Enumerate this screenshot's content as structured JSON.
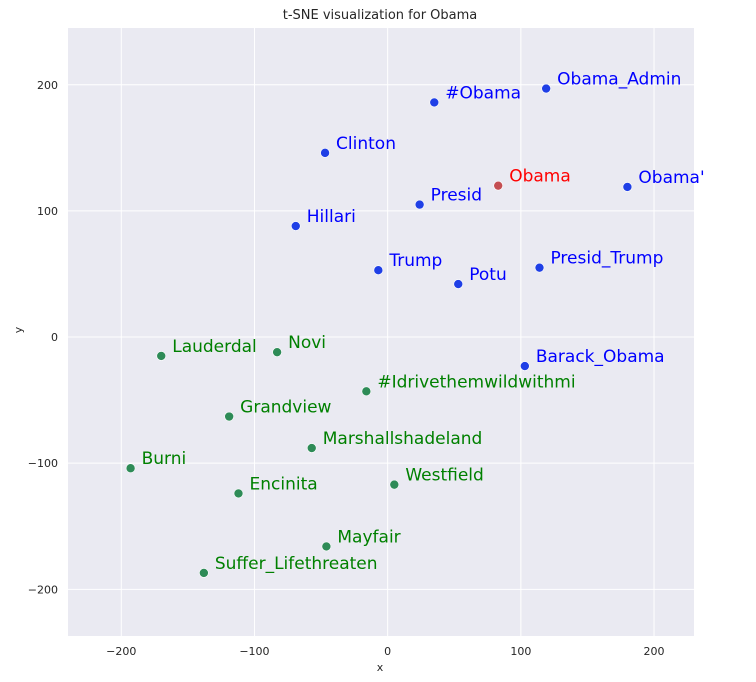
{
  "chart_data": {
    "type": "scatter",
    "title": "t-SNE visualization for Obama",
    "xlabel": "x",
    "ylabel": "y",
    "xlim": [
      -240,
      230
    ],
    "ylim": [
      -237,
      245
    ],
    "xticks": [
      -200,
      -100,
      0,
      100,
      200
    ],
    "yticks": [
      -200,
      -100,
      0,
      100,
      200
    ],
    "grid": true,
    "background": "#EAEAF2",
    "grid_color": "#FFFFFF",
    "colors": {
      "query": "#FF0000",
      "similar": "#0000FF",
      "dissimilar": "#008000",
      "marker_query": "#C44E52",
      "marker_similar": "#1F3FE6",
      "marker_dissimilar": "#2E8B57"
    },
    "series": [
      {
        "group": "query",
        "points": [
          {
            "label": "Obama",
            "x": 83,
            "y": 120
          }
        ]
      },
      {
        "group": "similar",
        "points": [
          {
            "label": "Obama_Admin",
            "x": 119,
            "y": 197
          },
          {
            "label": "#Obama",
            "x": 35,
            "y": 186
          },
          {
            "label": "Clinton",
            "x": -47,
            "y": 146
          },
          {
            "label": "Obama'",
            "x": 180,
            "y": 119
          },
          {
            "label": "Presid",
            "x": 24,
            "y": 105
          },
          {
            "label": "Hillari",
            "x": -69,
            "y": 88
          },
          {
            "label": "Trump",
            "x": -7,
            "y": 53
          },
          {
            "label": "Presid_Trump",
            "x": 114,
            "y": 55
          },
          {
            "label": "Potu",
            "x": 53,
            "y": 42
          },
          {
            "label": "Barack_Obama",
            "x": 103,
            "y": -23
          }
        ]
      },
      {
        "group": "dissimilar",
        "points": [
          {
            "label": "Lauderdal",
            "x": -170,
            "y": -15
          },
          {
            "label": "Novi",
            "x": -83,
            "y": -12
          },
          {
            "label": "#Idrivethemwildwithmi",
            "x": -16,
            "y": -43
          },
          {
            "label": "Grandview",
            "x": -119,
            "y": -63
          },
          {
            "label": "Marshallshadeland",
            "x": -57,
            "y": -88
          },
          {
            "label": "Burni",
            "x": -193,
            "y": -104
          },
          {
            "label": "Westfield",
            "x": 5,
            "y": -117
          },
          {
            "label": "Encinita",
            "x": -112,
            "y": -124
          },
          {
            "label": "Mayfair",
            "x": -46,
            "y": -166
          },
          {
            "label": "Suffer_Lifethreaten",
            "x": -138,
            "y": -187
          }
        ]
      }
    ]
  }
}
